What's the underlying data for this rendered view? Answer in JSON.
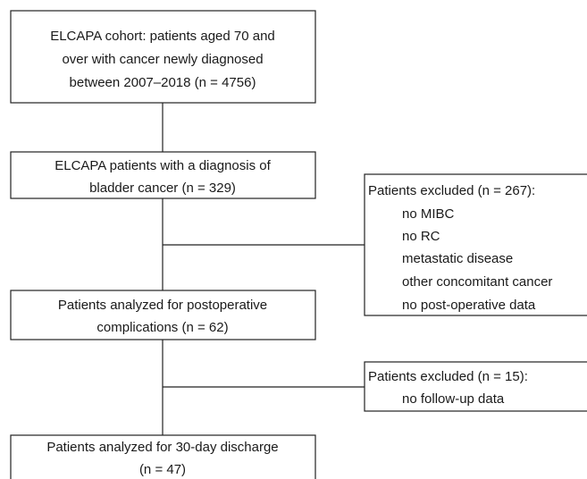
{
  "nodes": [
    {
      "lines": [
        "ELCAPA cohort: patients aged 70 and",
        "over with cancer newly diagnosed",
        "between 2007–2018 (n = 4756)"
      ]
    },
    {
      "lines": [
        "ELCAPA patients with a diagnosis of",
        "bladder cancer (n = 329)"
      ]
    },
    {
      "lines": [
        "Patients analyzed for postoperative",
        "complications  (n = 62)"
      ]
    },
    {
      "lines": [
        "Patients analyzed for 30-day discharge",
        "(n = 47)"
      ]
    }
  ],
  "exclusions": [
    {
      "title": "Patients excluded (n = 267):",
      "items": [
        "no MIBC",
        "no RC",
        "metastatic disease",
        "other concomitant cancer",
        "no post-operative data"
      ]
    },
    {
      "title": "Patients excluded (n = 15):",
      "items": [
        "no follow-up data"
      ]
    }
  ]
}
